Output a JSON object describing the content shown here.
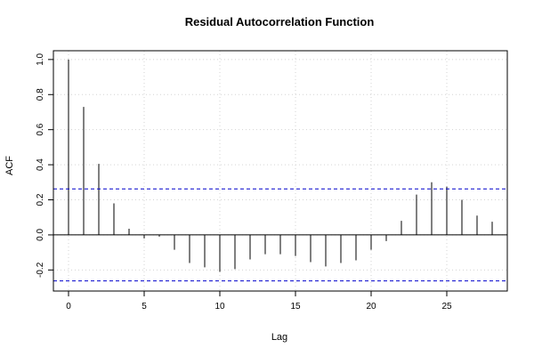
{
  "chart_data": {
    "type": "bar",
    "title": "Residual Autocorrelation Function",
    "xlabel": "Lag",
    "ylabel": "ACF",
    "x": [
      0,
      1,
      2,
      3,
      4,
      5,
      6,
      7,
      8,
      9,
      10,
      11,
      12,
      13,
      14,
      15,
      16,
      17,
      18,
      19,
      20,
      21,
      22,
      23,
      24,
      25,
      26,
      27,
      28
    ],
    "values": [
      1.0,
      0.73,
      0.405,
      0.18,
      0.035,
      -0.02,
      -0.01,
      -0.085,
      -0.16,
      -0.185,
      -0.21,
      -0.195,
      -0.14,
      -0.11,
      -0.11,
      -0.12,
      -0.155,
      -0.18,
      -0.16,
      -0.145,
      -0.085,
      -0.035,
      0.08,
      0.23,
      0.3,
      0.275,
      0.2,
      0.11,
      0.075
    ],
    "confidence_bound": 0.262,
    "xlim": [
      -1,
      29
    ],
    "ylim": [
      -0.32,
      1.05
    ],
    "x_ticks": [
      0,
      5,
      10,
      15,
      20,
      25
    ],
    "y_ticks": [
      -0.2,
      0.0,
      0.2,
      0.4,
      0.6,
      0.8,
      1.0
    ],
    "x_tick_labels": [
      "0",
      "5",
      "10",
      "15",
      "20",
      "25"
    ],
    "y_tick_labels": [
      "-0.2",
      "0.0",
      "0.2",
      "0.4",
      "0.6",
      "0.8",
      "1.0"
    ],
    "grid": true,
    "colors": {
      "bar": "#000000",
      "bound": "#0000cc",
      "grid": "#d3d3d3",
      "axis": "#000000"
    }
  }
}
